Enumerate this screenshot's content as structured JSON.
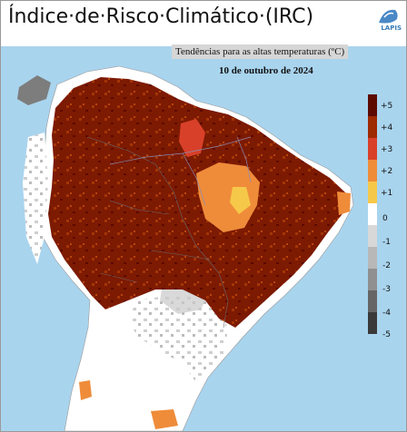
{
  "header": {
    "title": "Índice·de·Risco·Climático·(IRC)",
    "subtitle": "Tendências para as altas temperaturas (ºC)",
    "date": "10 de outubro de 2024",
    "logo_text": "LAPIS"
  },
  "legend": {
    "items": [
      {
        "label": "+5",
        "color": "#5c0a00"
      },
      {
        "label": "+4",
        "color": "#9e2a00"
      },
      {
        "label": "+3",
        "color": "#d9402a"
      },
      {
        "label": "+2",
        "color": "#ef8c3a"
      },
      {
        "label": "+1",
        "color": "#f6c84a"
      },
      {
        "label": "0",
        "color": "#ffffff"
      },
      {
        "label": "-1",
        "color": "#d8d8d8"
      },
      {
        "label": "-2",
        "color": "#b8b8b8"
      },
      {
        "label": "-3",
        "color": "#909090"
      },
      {
        "label": "-4",
        "color": "#666666"
      },
      {
        "label": "-5",
        "color": "#3a3a3a"
      }
    ]
  },
  "colors": {
    "ocean": "#a9d4ee",
    "border_lines": "#6a6a6a",
    "rivers": "#8a8ab0"
  }
}
